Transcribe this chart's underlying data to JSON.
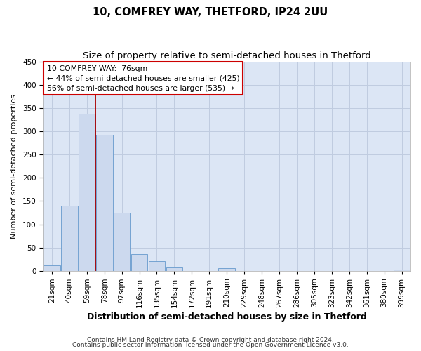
{
  "title": "10, COMFREY WAY, THETFORD, IP24 2UU",
  "subtitle": "Size of property relative to semi-detached houses in Thetford",
  "xlabel": "Distribution of semi-detached houses by size in Thetford",
  "ylabel": "Number of semi-detached properties",
  "bar_labels": [
    "21sqm",
    "40sqm",
    "59sqm",
    "78sqm",
    "97sqm",
    "116sqm",
    "135sqm",
    "154sqm",
    "172sqm",
    "191sqm",
    "210sqm",
    "229sqm",
    "248sqm",
    "267sqm",
    "286sqm",
    "305sqm",
    "323sqm",
    "342sqm",
    "361sqm",
    "380sqm",
    "399sqm"
  ],
  "bar_values": [
    12,
    140,
    338,
    293,
    125,
    36,
    20,
    7,
    0,
    0,
    6,
    0,
    0,
    0,
    0,
    0,
    0,
    0,
    0,
    0,
    2
  ],
  "bar_color": "#ccd9ee",
  "bar_edge_color": "#6699cc",
  "vline_color": "#aa0000",
  "ylim": [
    0,
    450
  ],
  "yticks": [
    0,
    50,
    100,
    150,
    200,
    250,
    300,
    350,
    400,
    450
  ],
  "annotation_title": "10 COMFREY WAY:  76sqm",
  "annotation_line1": "← 44% of semi-detached houses are smaller (425)",
  "annotation_line2": "56% of semi-detached houses are larger (535) →",
  "annotation_box_color": "#ffffff",
  "annotation_box_edge": "#cc0000",
  "footer1": "Contains HM Land Registry data © Crown copyright and database right 2024.",
  "footer2": "Contains public sector information licensed under the Open Government Licence v3.0.",
  "bg_color": "#ffffff",
  "plot_bg_color": "#dce6f5",
  "grid_color": "#c0cce0",
  "title_fontsize": 10.5,
  "subtitle_fontsize": 9.5,
  "xlabel_fontsize": 9,
  "ylabel_fontsize": 8,
  "tick_fontsize": 7.5,
  "footer_fontsize": 6.5,
  "vline_x_data": 2.5
}
